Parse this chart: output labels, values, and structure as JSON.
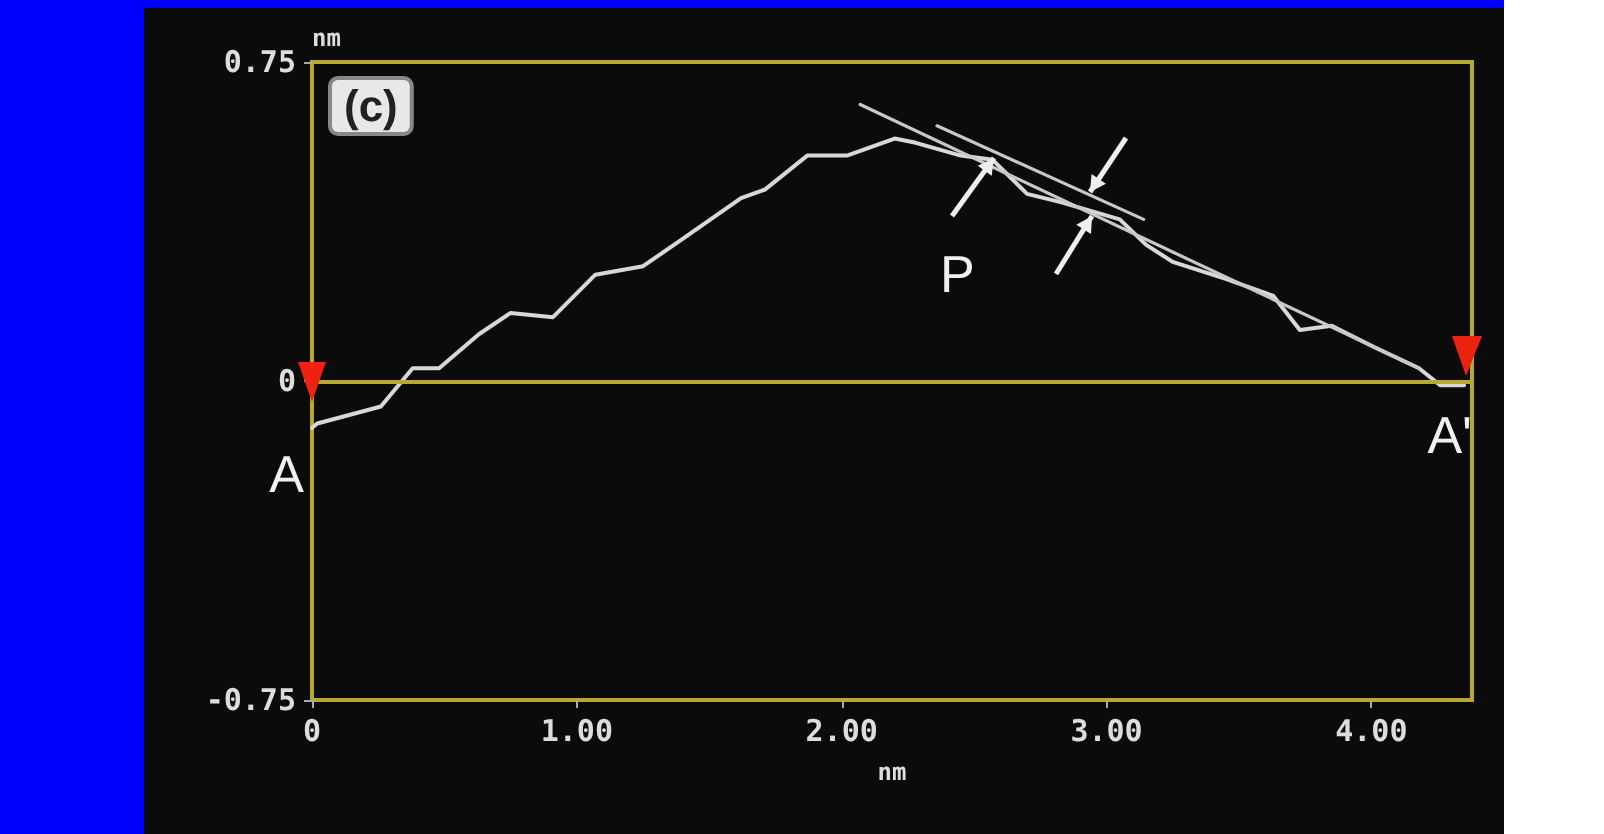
{
  "chart_data": {
    "type": "line",
    "xlabel": "nm",
    "ylabel": "nm",
    "xlim": [
      0,
      4.38
    ],
    "ylim": [
      -0.75,
      0.75
    ],
    "xticks": [
      0,
      {
        "value": 1,
        "label": "1.00"
      },
      {
        "value": 2,
        "label": "2.00"
      },
      {
        "value": 3,
        "label": "3.00"
      },
      {
        "value": 4,
        "label": "4.00"
      }
    ],
    "yticks": [
      -0.75,
      0,
      0.75
    ],
    "grid": false,
    "marker": "none",
    "line_style": "solid",
    "series": [
      {
        "color": "#d8d8d8",
        "x": [
          0,
          0.02,
          0.26,
          0.38,
          0.48,
          0.63,
          0.75,
          0.91,
          1.07,
          1.25,
          1.39,
          1.62,
          1.71,
          1.87,
          2.02,
          2.2,
          2.28,
          2.45,
          2.57,
          2.7,
          2.83,
          3.05,
          3.15,
          3.25,
          3.45,
          3.63,
          3.73,
          3.85,
          4.01,
          4.18,
          4.26,
          4.35
        ],
        "values": [
          -0.11,
          -0.1,
          -0.06,
          0.03,
          0.03,
          0.11,
          0.16,
          0.15,
          0.25,
          0.27,
          0.33,
          0.43,
          0.45,
          0.53,
          0.53,
          0.57,
          0.56,
          0.53,
          0.52,
          0.44,
          0.42,
          0.38,
          0.32,
          0.28,
          0.24,
          0.2,
          0.12,
          0.13,
          0.08,
          0.03,
          -0.01,
          -0.01
        ]
      },
      {
        "color": "#c8c8c8",
        "x": [
          2.07,
          4.18
        ],
        "values": [
          0.65,
          0.03
        ]
      },
      {
        "color": "#c8c8c8",
        "x": [
          2.36,
          3.14
        ],
        "values": [
          0.6,
          0.38
        ]
      }
    ],
    "ref_lines": [
      {
        "axis": "y",
        "value": 0,
        "color": "#b8a832"
      }
    ],
    "annotations": [
      "(c)",
      "P",
      {
        "text": "A",
        "x": 0,
        "y": -0.11
      },
      {
        "text": "A'",
        "x": 4.38,
        "y": 0
      }
    ]
  }
}
